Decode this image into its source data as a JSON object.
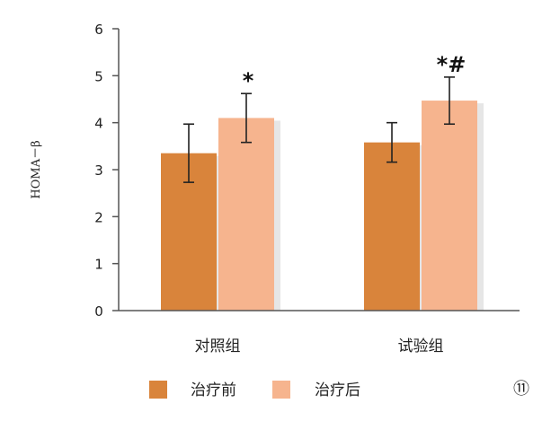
{
  "chart_data": {
    "type": "bar",
    "categories": [
      "对照组",
      "试验组"
    ],
    "series": [
      {
        "name": "治疗前",
        "color": "#d9843b",
        "values": [
          3.35,
          3.58
        ],
        "errors": [
          0.62,
          0.42
        ]
      },
      {
        "name": "治疗后",
        "color": "#f6b48e",
        "values": [
          4.1,
          4.47
        ],
        "errors": [
          0.52,
          0.5
        ]
      }
    ],
    "annotations": [
      {
        "category": 0,
        "series": 1,
        "text": "*"
      },
      {
        "category": 1,
        "series": 1,
        "text": "*#"
      }
    ],
    "ylabel": "HOMA－β",
    "xlabel": "",
    "title": "",
    "ylim": [
      0,
      6
    ],
    "yticks": [
      "0",
      "1",
      "2",
      "3",
      "4",
      "5",
      "6"
    ],
    "grid": false,
    "legend_position": "bottom",
    "panel_label": "⑪"
  }
}
